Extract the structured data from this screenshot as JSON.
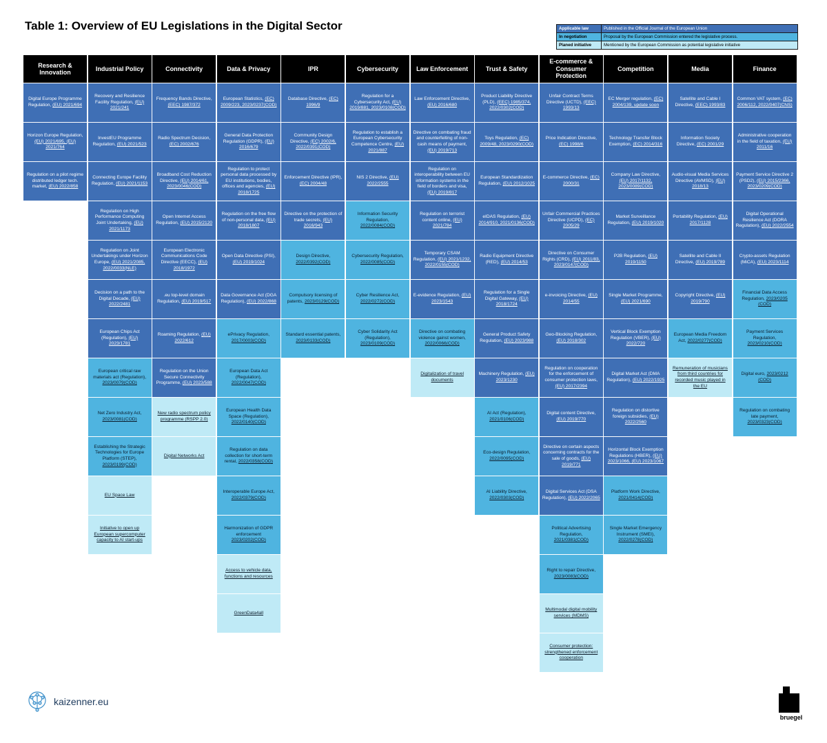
{
  "title": "Table 1: Overview of EU Legislations in the Digital Sector",
  "colors": {
    "applicable": "#3f6fb5",
    "negotiation": "#4fb4e0",
    "planned": "#bfeaf6",
    "header": "#000000"
  },
  "legend": [
    {
      "label": "Applicable law",
      "desc": "Published in the Official Journal of the European Union"
    },
    {
      "label": "In negotiation",
      "desc": "Proposal by the European Commission entered the legislative process."
    },
    {
      "label": "Planed initiative",
      "desc": "Mentioned by the European Commission as potential legislative initiative"
    }
  ],
  "columns": [
    {
      "name": "Research & Innovation",
      "cells": [
        {
          "s": "a",
          "t": "Digital Europe Programme Regulation,",
          "r": "(EU) 2021/694"
        },
        {
          "s": "a",
          "t": "Horizon Europe Regulation,",
          "r": "(EU) 2021/695, (EU) 2021/764"
        },
        {
          "s": "a",
          "t": "Regulation on a pilot regime distributed ledger tech. market,",
          "r": "(EU) 2022/858"
        }
      ]
    },
    {
      "name": "Industrial Policy",
      "cells": [
        {
          "s": "a",
          "t": "Recovery and Resilience Facility Regulation,",
          "r": "(EU) 2021/241"
        },
        {
          "s": "a",
          "t": "InvestEU Programme Regulation,",
          "r": "(EU) 2021/523"
        },
        {
          "s": "a",
          "t": "Connecting Europe Facility Regulation,",
          "r": "(EU) 2021/1153"
        },
        {
          "s": "a",
          "t": "Regulation on High Performance Computing Joint Undertaking,",
          "r": "(EU) 2021/1173"
        },
        {
          "s": "a",
          "t": "Regulation on Joint Undertakings under Horizon Europe,",
          "r": "(EU) 2021/2085, 2022/0033(NLE)"
        },
        {
          "s": "a",
          "t": "Decision on a path to the Digital Decade,",
          "r": "(EU) 2022/2481"
        },
        {
          "s": "a",
          "t": "European Chips Act (Regulation),",
          "r": "(EU) 2023/1781"
        },
        {
          "s": "n",
          "t": "European critical raw materials act (Regulation),",
          "r": "2023/0079(COD)"
        },
        {
          "s": "n",
          "t": "Net Zero Industry Act,",
          "r": "2023/0081(COD)"
        },
        {
          "s": "n",
          "t": "Establishing the Strategic Technologies for Europe Platform (STEP),",
          "r": "2023/0199(COD)"
        },
        {
          "s": "p",
          "t": "EU Space Law",
          "r": ""
        },
        {
          "s": "p",
          "t": "Initiative to open up European supercomputer capacity to AI start-ups",
          "r": ""
        }
      ]
    },
    {
      "name": "Connectivity",
      "cells": [
        {
          "s": "a",
          "t": "Frequency Bands Directive,",
          "r": "(EEC) 1987/372"
        },
        {
          "s": "a",
          "t": "Radio Spectrum Decision,",
          "r": "(EC) 2002/676"
        },
        {
          "s": "a",
          "t": "Broadband Cost Reduction Directive,",
          "r": "(EU) 2014/61, 2023/0046(COD)"
        },
        {
          "s": "a",
          "t": "Open Internet Access Regulation,",
          "r": "(EU) 2015/2120"
        },
        {
          "s": "a",
          "t": "European Electronic Communications Code Directive (EECC),",
          "r": "(EU) 2018/1972"
        },
        {
          "s": "a",
          "t": ".eu top-level domain Regulation,",
          "r": "(EU) 2019/517"
        },
        {
          "s": "a",
          "t": "Roaming Regulation,",
          "r": "(EU) 2022/612"
        },
        {
          "s": "a",
          "t": "Regulation on the Union Secure Connectivity Programme,",
          "r": "(EU) 2023/588"
        },
        {
          "s": "p",
          "t": "New radio spectrum policy programme (RSPP 2.0)",
          "r": ""
        },
        {
          "s": "p",
          "t": "Digital Networks Act",
          "r": ""
        }
      ]
    },
    {
      "name": "Data & Privacy",
      "cells": [
        {
          "s": "a",
          "t": "European Statistics,",
          "r": "(EC) 2009/223, 2023/0237(COD)"
        },
        {
          "s": "a",
          "t": "General Data Protection Regulation (GDPR),",
          "r": "(EU) 2016/679"
        },
        {
          "s": "a",
          "t": "Regulation to protect personal data processed by EU institutions, bodies, offices and agencies,",
          "r": "(EU) 2018/1725"
        },
        {
          "s": "a",
          "t": "Regulation on the free flow of non-personal data,",
          "r": "(EU) 2018/1807"
        },
        {
          "s": "a",
          "t": "Open Data Directive (PSI),",
          "r": "(EU) 2019/1024"
        },
        {
          "s": "a",
          "t": "Data Governance Act (DGA Regulation),",
          "r": "(EU) 2022/868"
        },
        {
          "s": "n",
          "t": "ePrivacy Regulation,",
          "r": "2017/0003(COD)"
        },
        {
          "s": "n",
          "t": "European Data Act (Regulation),",
          "r": "2022/0047(COD)"
        },
        {
          "s": "n",
          "t": "European Health Data Space (Regulation),",
          "r": "2022/0140(COD)"
        },
        {
          "s": "n",
          "t": "Regulation on data collection for short-term rental,",
          "r": "2022/0358(COD)"
        },
        {
          "s": "n",
          "t": "Interoperable Europe Act,",
          "r": "2022/0379(COD)"
        },
        {
          "s": "n",
          "t": "Harmonization of GDPR enforcement",
          "r": "2023/0202(COD)"
        },
        {
          "s": "p",
          "t": "Access to vehicle data, functions and resources",
          "r": ""
        },
        {
          "s": "p",
          "t": "GreenData4all",
          "r": ""
        }
      ]
    },
    {
      "name": "IPR",
      "cells": [
        {
          "s": "a",
          "t": "Database Directive,",
          "r": "(EC) 1996/9"
        },
        {
          "s": "a",
          "t": "Community Design Directive,",
          "r": "(EC) 2002/6, 2022/0391(COD)"
        },
        {
          "s": "a",
          "t": "Enforcement Directive (IPR),",
          "r": "(EC) 2004/48"
        },
        {
          "s": "a",
          "t": "Directive on the protection of trade secrets,",
          "r": "(EU) 2016/943"
        },
        {
          "s": "n",
          "t": "Design Directive,",
          "r": "2022/0392(COD)"
        },
        {
          "s": "n",
          "t": "Compulsory licensing of patents,",
          "r": "2023/0129(COD)"
        },
        {
          "s": "n",
          "t": "Standard essential patents,",
          "r": "2023/0133(COD)"
        }
      ]
    },
    {
      "name": "Cybersecurity",
      "cells": [
        {
          "s": "a",
          "t": "Regulation for a Cybersecurity Act,",
          "r": "(EU) 2019/881, 2023/0108(COD)"
        },
        {
          "s": "a",
          "t": "Regulation to establish a European Cybersecurity Competence Centre,",
          "r": "(EU) 2021/887"
        },
        {
          "s": "a",
          "t": "NIS 2 Directive,",
          "r": "(EU) 2022/2555"
        },
        {
          "s": "n",
          "t": "Information Security Regulation,",
          "r": "2022/0084(COD)"
        },
        {
          "s": "n",
          "t": "Cybersecurity Regulation,",
          "r": "2022/0085(COD)"
        },
        {
          "s": "n",
          "t": "Cyber Resilience Act,",
          "r": "2022/0272(COD)"
        },
        {
          "s": "n",
          "t": "Cyber Solidarity Act (Regulation),",
          "r": "2023/0109(COD)"
        }
      ]
    },
    {
      "name": "Law Enforcement",
      "cells": [
        {
          "s": "a",
          "t": "Law Enforcement Directive,",
          "r": "(EU) 2016/680"
        },
        {
          "s": "a",
          "t": "Directive on combating fraud and counterfeiting of non-cash means of payment,",
          "r": "(EU) 2019/713"
        },
        {
          "s": "a",
          "t": "Regulation on interoperability between EU information systems in the field of borders and visa,",
          "r": "(EU) 2019/817"
        },
        {
          "s": "a",
          "t": "Regulation on terrorist content online,",
          "r": "(EU) 2021/784"
        },
        {
          "s": "a",
          "t": "Temporary CSAM Regulation,",
          "r": "(EU) 2021/1232, 2022/0155(COD)"
        },
        {
          "s": "a",
          "t": "E-evidence Regulation,",
          "r": "(EU) 2023/1543"
        },
        {
          "s": "n",
          "t": "Directive on combating violence gainst women,",
          "r": "2022/0066(COD)"
        },
        {
          "s": "p",
          "t": "Digitalization of travel documents",
          "r": ""
        }
      ]
    },
    {
      "name": "Trust & Safety",
      "cells": [
        {
          "s": "a",
          "t": "Product Liability Directive (PLD),",
          "r": "(EEC) 1985/374, 2022/0302(COD)"
        },
        {
          "s": "a",
          "t": "Toys Regulation,",
          "r": "(EC) 2009/48, 2023/0290(COD)"
        },
        {
          "s": "a",
          "t": "European Standardization Regulation,",
          "r": "(EU) 2012/1025"
        },
        {
          "s": "a",
          "t": "eIDAS Regulation,",
          "r": "(EU) 2014/910, 2021/0136(COD)"
        },
        {
          "s": "a",
          "t": "Radio Equipment Directive (RED),",
          "r": "(EU) 2014/53"
        },
        {
          "s": "a",
          "t": "Regulation for a Single Digital Gateway,",
          "r": "(EU) 2018/1724"
        },
        {
          "s": "a",
          "t": "General Product Safety Regulation,",
          "r": "(EU) 2023/988"
        },
        {
          "s": "a",
          "t": "Machinery Regulation,",
          "r": "(EU) 2023/1230"
        },
        {
          "s": "n",
          "t": "AI Act (Regulation),",
          "r": "2021/0106(COD)"
        },
        {
          "s": "n",
          "t": "Eco-design Regulation,",
          "r": "2022/0095(COD)"
        },
        {
          "s": "n",
          "t": "AI Liability Directive,",
          "r": "2022/0303(COD)"
        }
      ]
    },
    {
      "name": "E-commerce & Consumer Protection",
      "cells": [
        {
          "s": "a",
          "t": "Unfair Contract Terms Directive (UCTD),",
          "r": "(EEC) 1993/13"
        },
        {
          "s": "a",
          "t": "Price Indication Directive,",
          "r": "(EC) 1998/6"
        },
        {
          "s": "a",
          "t": "E-commerce Directive,",
          "r": "(EC) 2000/31"
        },
        {
          "s": "a",
          "t": "Unfair Commercial Practices Directive (UCPD),",
          "r": "(EC) 2005/29"
        },
        {
          "s": "a",
          "t": "Directive on Consumer Rights (CRD),",
          "r": "(EU) 2011/83, 2023/0147(COD)"
        },
        {
          "s": "a",
          "t": "e-invoicing Directive,",
          "r": "(EU) 2014/55"
        },
        {
          "s": "a",
          "t": "Geo-Blocking Regulation,",
          "r": "(EU) 2018/302"
        },
        {
          "s": "a",
          "t": "Regulation on cooperation for the enforcement of consumer protection laws,",
          "r": "(EU) 2017/2394"
        },
        {
          "s": "a",
          "t": "Digital content Directive,",
          "r": "(EU) 2019/770"
        },
        {
          "s": "a",
          "t": "Directive on certain aspects concerning contracts for the sale of goods,",
          "r": "(EU) 2019/771"
        },
        {
          "s": "a",
          "t": "Digital Services Act (DSA Regulation),",
          "r": "(EU) 2022/2065"
        },
        {
          "s": "n",
          "t": "Political Advertising Regulation,",
          "r": "2021/0381(COD)"
        },
        {
          "s": "n",
          "t": "Right to repair Directive,",
          "r": "2023/0083(COD)"
        },
        {
          "s": "p",
          "t": "Multimodal digital mobility services (MDMS)",
          "r": ""
        },
        {
          "s": "p",
          "t": "Consumer protection: strengthened enforcement cooperation",
          "r": ""
        }
      ]
    },
    {
      "name": "Competition",
      "cells": [
        {
          "s": "a",
          "t": "EC Merger regulation,",
          "r": "(EC) 2004/139, update soon"
        },
        {
          "s": "a",
          "t": "Technology Transfer Block Exemption,",
          "r": "(EC) 2014/316"
        },
        {
          "s": "a",
          "t": "Company Law Directive,",
          "r": "(EU) 2017/1132, 2023/0089(COD)"
        },
        {
          "s": "a",
          "t": "Market Surveillance Regulation,",
          "r": "(EU) 2019/1020"
        },
        {
          "s": "a",
          "t": "P2B Regulation,",
          "r": "(EU) 2019/1150"
        },
        {
          "s": "a",
          "t": "Single Market Programme,",
          "r": "(EU) 2021/690"
        },
        {
          "s": "a",
          "t": "Vertical Block Exemption Regulation (VBER),",
          "r": "(EU) 2022/720"
        },
        {
          "s": "a",
          "t": "Digital Market Act (DMA Regulation),",
          "r": "(EU) 2022/1925"
        },
        {
          "s": "a",
          "t": "Regulation on distortive foreign subsidies,",
          "r": "(EU) 2022/2560"
        },
        {
          "s": "a",
          "t": "Horizontal Block Exemption Regulations (HBER),",
          "r": "(EU) 2023/1066, (EU) 2023/1067"
        },
        {
          "s": "n",
          "t": "Platform Work Directive,",
          "r": "2021/0414(COD)"
        },
        {
          "s": "n",
          "t": "Single Market Emergency Instrument (SMEI),",
          "r": "2022/0278(COD)"
        }
      ]
    },
    {
      "name": "Media",
      "cells": [
        {
          "s": "a",
          "t": "Satellite and Cable I Directive,",
          "r": "(EEC) 1993/83"
        },
        {
          "s": "a",
          "t": "Information Society Directive,",
          "r": "(EC) 2001/29"
        },
        {
          "s": "a",
          "t": "Audio-visual Media Services Directive (AVMSD),",
          "r": "(EU) 2018/13"
        },
        {
          "s": "a",
          "t": "Portability Regulation,",
          "r": "(EU) 2017/1128"
        },
        {
          "s": "a",
          "t": "Satellite and Cable II Directive,",
          "r": "(EU) 2019/789"
        },
        {
          "s": "a",
          "t": "Copyright Directive,",
          "r": "(EU) 2019/790"
        },
        {
          "s": "n",
          "t": "European Media Freedom Act,",
          "r": "2022/0277(COD)"
        },
        {
          "s": "p",
          "t": "Remuneration of musicians from third countries for recorded music played in the EU",
          "r": ""
        }
      ]
    },
    {
      "name": "Finance",
      "cells": [
        {
          "s": "a",
          "t": "Common VAT system,",
          "r": "(EC) 2006/112, 2022/0407(CNS)"
        },
        {
          "s": "a",
          "t": "Administrative cooperation in the field of taxation,",
          "r": "(EU) 2011/16"
        },
        {
          "s": "a",
          "t": "Payment Service Directive 2 (PSD2),",
          "r": "(EU) 2015/2366, 2023/0209(COD)"
        },
        {
          "s": "a",
          "t": "Digital Operational Resilience Act (DORA Regulation),",
          "r": "(EU) 2022/2554"
        },
        {
          "s": "a",
          "t": "Crypto-assets Regulation (MiCA),",
          "r": "(EU) 2023/1114"
        },
        {
          "s": "n",
          "t": "Financial Data Access Regulation,",
          "r": "2023/0205 (COD)"
        },
        {
          "s": "n",
          "t": "Payment Services Regulation,",
          "r": "2023/0210(COD)"
        },
        {
          "s": "n",
          "t": "Digital euro,",
          "r": "2023/0212 (COD)"
        },
        {
          "s": "n",
          "t": "Regulation on combating late payment,",
          "r": "2023/0323(COD)"
        }
      ]
    }
  ],
  "footer": {
    "site": "kaizenner.eu",
    "publisher": "bruegel"
  }
}
